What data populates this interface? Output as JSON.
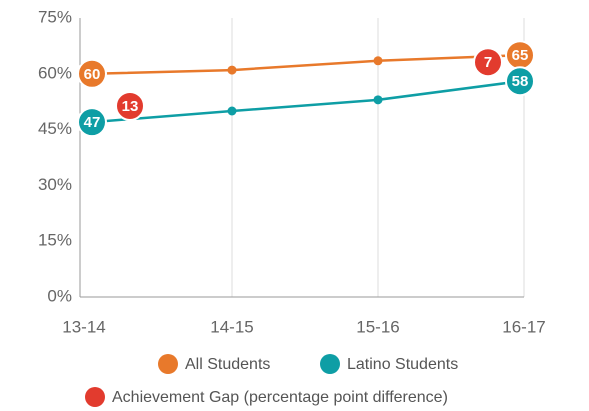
{
  "chart_data": {
    "type": "line",
    "categories": [
      "13-14",
      "14-15",
      "15-16",
      "16-17"
    ],
    "series": [
      {
        "name": "All Students",
        "color": "#e8792b",
        "values": [
          60,
          61,
          63.5,
          65
        ],
        "value_labels": [
          "60",
          null,
          null,
          "65"
        ]
      },
      {
        "name": "Latino Students",
        "color": "#0e9ea5",
        "values": [
          47,
          50,
          53,
          58
        ],
        "value_labels": [
          "47",
          null,
          null,
          "58"
        ]
      },
      {
        "name": "Achievement Gap (percentage point difference)",
        "color": "#e23b2e",
        "values": [
          13,
          null,
          null,
          7
        ],
        "value_labels": [
          "13",
          null,
          null,
          "7"
        ]
      }
    ],
    "ylim": [
      0,
      75
    ],
    "yticks": [
      {
        "value": 0,
        "label": "0%"
      },
      {
        "value": 15,
        "label": "15%"
      },
      {
        "value": 30,
        "label": "30%"
      },
      {
        "value": 45,
        "label": "45%"
      },
      {
        "value": 60,
        "label": "60%"
      },
      {
        "value": 75,
        "label": "75%"
      }
    ]
  }
}
